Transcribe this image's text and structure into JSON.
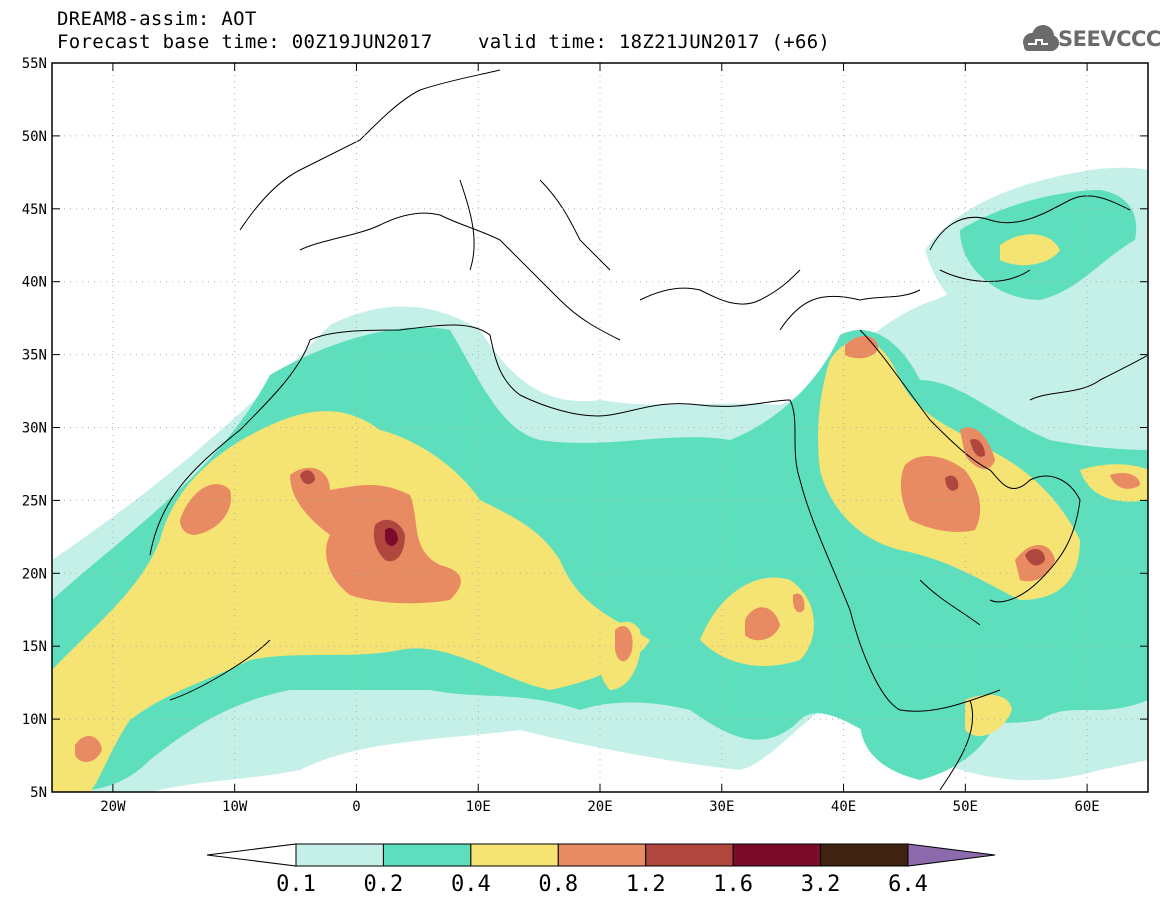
{
  "header": {
    "title": "DREAM8-assim: AOT",
    "base_time": "Forecast base time: 00Z19JUN2017",
    "valid_time": "valid time: 18Z21JUN2017 (+66)"
  },
  "logo": {
    "text": "SEEVCCC",
    "icon": "cloud-icon"
  },
  "axes": {
    "lon_ticks": [
      {
        "lon": -20,
        "label": "20W"
      },
      {
        "lon": -10,
        "label": "10W"
      },
      {
        "lon": 0,
        "label": "0"
      },
      {
        "lon": 10,
        "label": "10E"
      },
      {
        "lon": 20,
        "label": "20E"
      },
      {
        "lon": 30,
        "label": "30E"
      },
      {
        "lon": 40,
        "label": "40E"
      },
      {
        "lon": 50,
        "label": "50E"
      },
      {
        "lon": 60,
        "label": "60E"
      }
    ],
    "lat_ticks": [
      {
        "lat": 55,
        "label": "55N"
      },
      {
        "lat": 50,
        "label": "50N"
      },
      {
        "lat": 45,
        "label": "45N"
      },
      {
        "lat": 40,
        "label": "40N"
      },
      {
        "lat": 35,
        "label": "35N"
      },
      {
        "lat": 30,
        "label": "30N"
      },
      {
        "lat": 25,
        "label": "25N"
      },
      {
        "lat": 20,
        "label": "20N"
      },
      {
        "lat": 15,
        "label": "15N"
      },
      {
        "lat": 10,
        "label": "10N"
      },
      {
        "lat": 5,
        "label": "5N"
      }
    ],
    "lon_range": [
      -25,
      65
    ],
    "lat_range": [
      5,
      55
    ],
    "grid": "dotted"
  },
  "colorbar": {
    "labels": [
      "0.1",
      "0.2",
      "0.4",
      "0.8",
      "1.2",
      "1.6",
      "3.2",
      "6.4"
    ],
    "colors": [
      "#ffffff",
      "#c5f0e8",
      "#5ddfbd",
      "#f5e373",
      "#e88a62",
      "#b0473f",
      "#7a0c2a",
      "#3e2312",
      "#8c6aab"
    ]
  }
}
